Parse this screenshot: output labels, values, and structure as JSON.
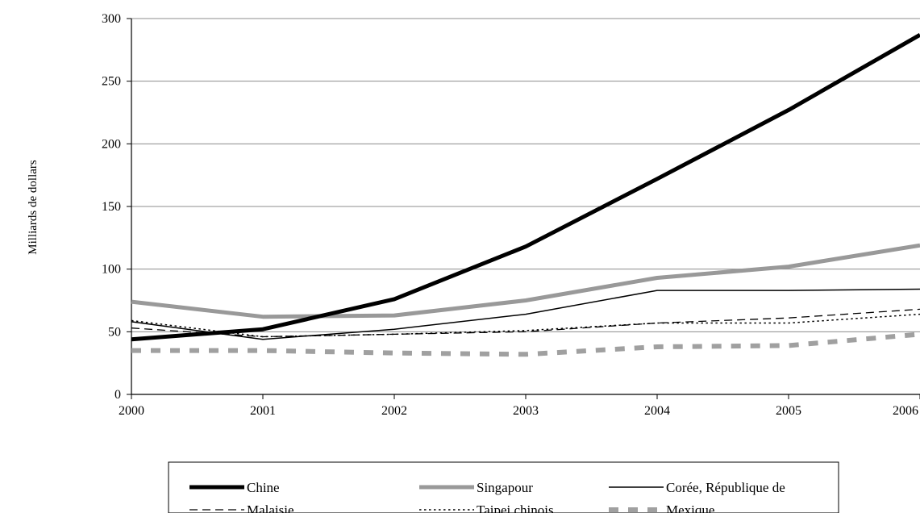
{
  "chart_data": {
    "type": "line",
    "title": "",
    "xlabel": "",
    "ylabel": "Milliards de dollars",
    "x": [
      "2000",
      "2001",
      "2002",
      "2003",
      "2004",
      "2005",
      "2006"
    ],
    "ylim": [
      0,
      300
    ],
    "yticks": [
      0,
      50,
      100,
      150,
      200,
      250,
      300
    ],
    "grid": "horizontal",
    "legend_position": "bottom",
    "series": [
      {
        "name": "Chine",
        "values": [
          44,
          52,
          76,
          118,
          172,
          227,
          287
        ],
        "color": "#000000",
        "style": "thick-solid"
      },
      {
        "name": "Singapour",
        "values": [
          74,
          62,
          63,
          75,
          93,
          102,
          119
        ],
        "color": "#999999",
        "style": "thick-solid"
      },
      {
        "name": "Corée, République de",
        "values": [
          58,
          44,
          52,
          64,
          83,
          83,
          84
        ],
        "color": "#000000",
        "style": "thin-solid"
      },
      {
        "name": "Malaisie",
        "values": [
          53,
          46,
          48,
          50,
          57,
          61,
          68
        ],
        "color": "#000000",
        "style": "dashed"
      },
      {
        "name": "Taipei chinois",
        "values": [
          59,
          46,
          48,
          51,
          57,
          57,
          64
        ],
        "color": "#000000",
        "style": "dotted"
      },
      {
        "name": "Mexique",
        "values": [
          35,
          35,
          33,
          32,
          38,
          39,
          48
        ],
        "color": "#a0a0a0",
        "style": "thick-dashed"
      }
    ]
  }
}
